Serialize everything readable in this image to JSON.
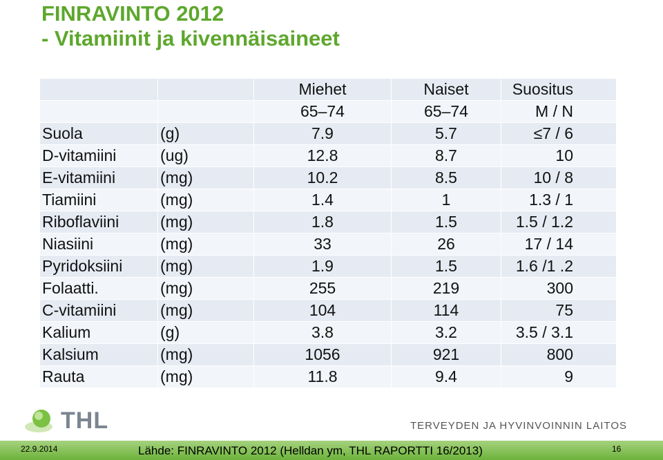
{
  "header": {
    "title": [
      "FINRAVINTO 2012",
      "- Vitamiinit ja kivennäisaineet"
    ]
  },
  "table": {
    "header": [
      [
        "",
        "",
        "Miehet",
        "Naiset",
        "Suositus"
      ],
      [
        "",
        "",
        "65–74",
        "65–74",
        "M / N"
      ]
    ],
    "rows": [
      [
        "Suola",
        "(g)",
        "7.9",
        "5.7",
        "≤7 / 6"
      ],
      [
        "D-vitamiini",
        "(ug)",
        "12.8",
        "8.7",
        "10"
      ],
      [
        "E-vitamiini",
        "(mg)",
        "10.2",
        "8.5",
        "10 / 8"
      ],
      [
        "Tiamiini",
        "(mg)",
        "1.4",
        "1",
        "1.3 / 1"
      ],
      [
        "Riboflaviini",
        "(mg)",
        "1.8",
        "1.5",
        "1.5 / 1.2"
      ],
      [
        "Niasiini",
        "(mg)",
        "33",
        "26",
        "17 / 14"
      ],
      [
        "Pyridoksiini",
        "(mg)",
        "1.9",
        "1.5",
        "1.6 /1 .2"
      ],
      [
        "Folaatti.",
        "(mg)",
        "255",
        "219",
        "300"
      ],
      [
        "C-vitamiini",
        "(mg)",
        "104",
        "114",
        "75"
      ],
      [
        "Kalium",
        "(g)",
        "3.8",
        "3.2",
        "3.5 / 3.1"
      ],
      [
        "Kalsium",
        "(mg)",
        "1056",
        "921",
        "800"
      ],
      [
        "Rauta",
        "(mg)",
        "11.8",
        "9.4",
        "9"
      ]
    ]
  },
  "footer": {
    "logo": "THL",
    "institute": "TERVEYDEN JA HYVINVOINNIN LAITOS",
    "date": "22.9.2014",
    "source": "Lähde: FINRAVINTO 2012 (Helldan ym, THL RAPORTTI 16/2013)",
    "page": "16"
  }
}
